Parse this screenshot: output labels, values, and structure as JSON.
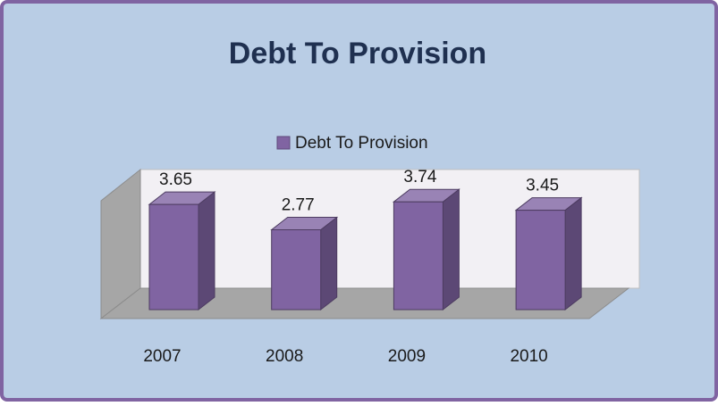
{
  "chart_data": {
    "type": "bar3d",
    "title": "Debt To Provision",
    "categories": [
      "2007",
      "2008",
      "2009",
      "2010"
    ],
    "series": [
      {
        "name": "Debt To Provision",
        "color": "#8064a2",
        "values": [
          3.65,
          2.77,
          3.74,
          3.45
        ]
      }
    ],
    "legend": "top"
  }
}
